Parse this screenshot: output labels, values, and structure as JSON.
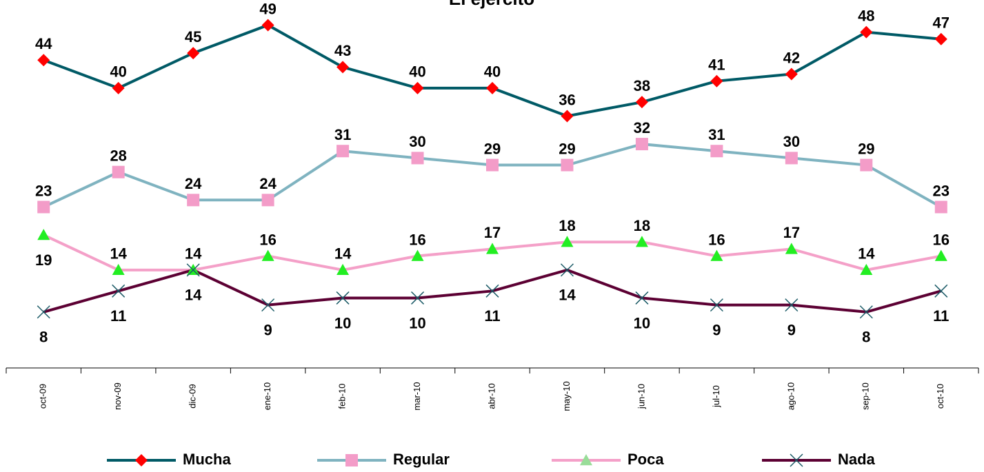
{
  "chart_data": {
    "type": "line",
    "title": "El ejército",
    "categories": [
      "oct-09",
      "nov-09",
      "dic-09",
      "ene-10",
      "feb-10",
      "mar-10",
      "abr-10",
      "may-10",
      "jun-10",
      "jul-10",
      "ago-10",
      "sep-10",
      "oct-10"
    ],
    "series": [
      {
        "name": "Mucha",
        "color": "#005a66",
        "marker": "diamond",
        "marker_color": "#ff0000",
        "label_position": "above",
        "values": [
          44,
          40,
          45,
          49,
          43,
          40,
          40,
          36,
          38,
          41,
          42,
          48,
          47
        ]
      },
      {
        "name": "Regular",
        "color": "#7fb3c0",
        "marker": "square",
        "marker_color": "#f39cc8",
        "label_position": "above",
        "values": [
          23,
          28,
          24,
          24,
          31,
          30,
          29,
          29,
          32,
          31,
          30,
          29,
          23
        ]
      },
      {
        "name": "Poca",
        "color": "#f4a0c8",
        "marker": "triangle",
        "marker_color": "#22ee22",
        "label_position": "above",
        "values": [
          19,
          14,
          14,
          16,
          14,
          16,
          17,
          18,
          18,
          16,
          17,
          14,
          16
        ]
      },
      {
        "name": "Nada",
        "color": "#5c0033",
        "marker": "x",
        "marker_color": "#1a5a66",
        "label_position": "below",
        "values": [
          8,
          11,
          14,
          9,
          10,
          10,
          11,
          14,
          10,
          9,
          9,
          8,
          11
        ]
      }
    ],
    "ylim": [
      0,
      52
    ],
    "legend": "bottom"
  }
}
